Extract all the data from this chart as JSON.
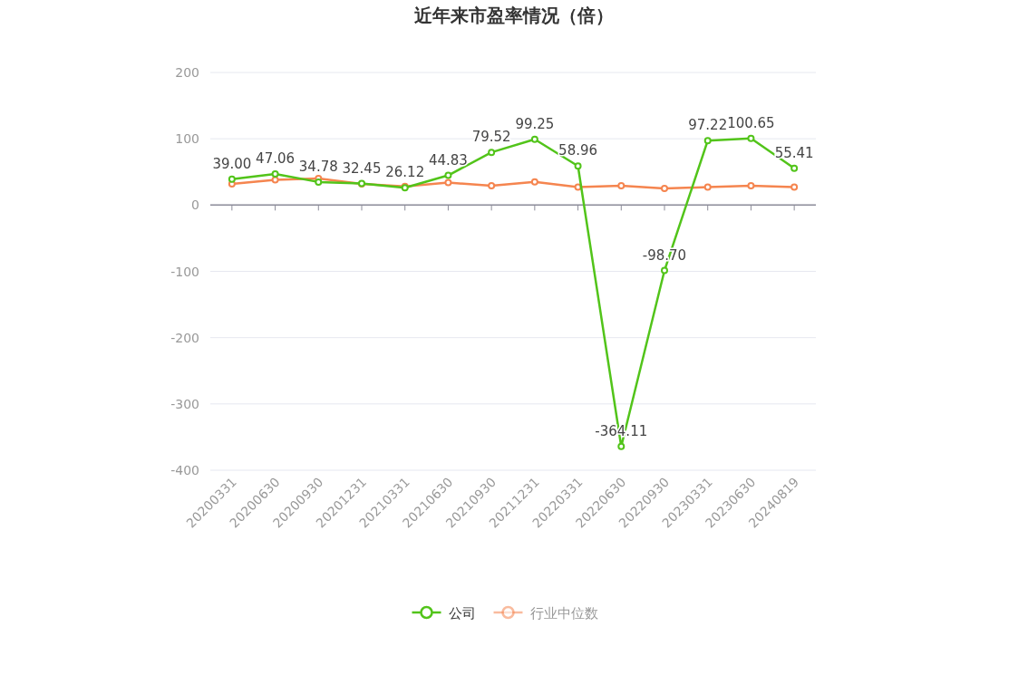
{
  "chart_data": {
    "type": "line",
    "title": "近年来市盈率情况（倍）",
    "categories": [
      "20200331",
      "20200630",
      "20200930",
      "20201231",
      "20210331",
      "20210630",
      "20210930",
      "20211231",
      "20220331",
      "20220630",
      "20220930",
      "20230331",
      "20230630",
      "20240819"
    ],
    "series": [
      {
        "name": "公司",
        "color": "#52c41a",
        "values": [
          39.0,
          47.06,
          34.78,
          32.45,
          26.12,
          44.83,
          79.52,
          99.25,
          58.96,
          -364.11,
          -98.7,
          97.22,
          100.65,
          55.41
        ],
        "value_labels": [
          "39.00",
          "47.06",
          "34.78",
          "32.45",
          "26.12",
          "44.83",
          "79.52",
          "99.25",
          "58.96",
          "-364.11",
          "-98.70",
          "97.22",
          "100.65",
          "55.41"
        ]
      },
      {
        "name": "行业中位数",
        "color": "#f5854f",
        "values": [
          32,
          38,
          40,
          32,
          28,
          34,
          29,
          35,
          27,
          29,
          25,
          27,
          29,
          27
        ]
      }
    ],
    "ylim": [
      -400,
      200
    ],
    "yticks": [
      -400,
      -300,
      -200,
      -100,
      0,
      100,
      200
    ],
    "grid": "y",
    "legend": "bottom",
    "marker": "circle",
    "line_style": "solid"
  }
}
